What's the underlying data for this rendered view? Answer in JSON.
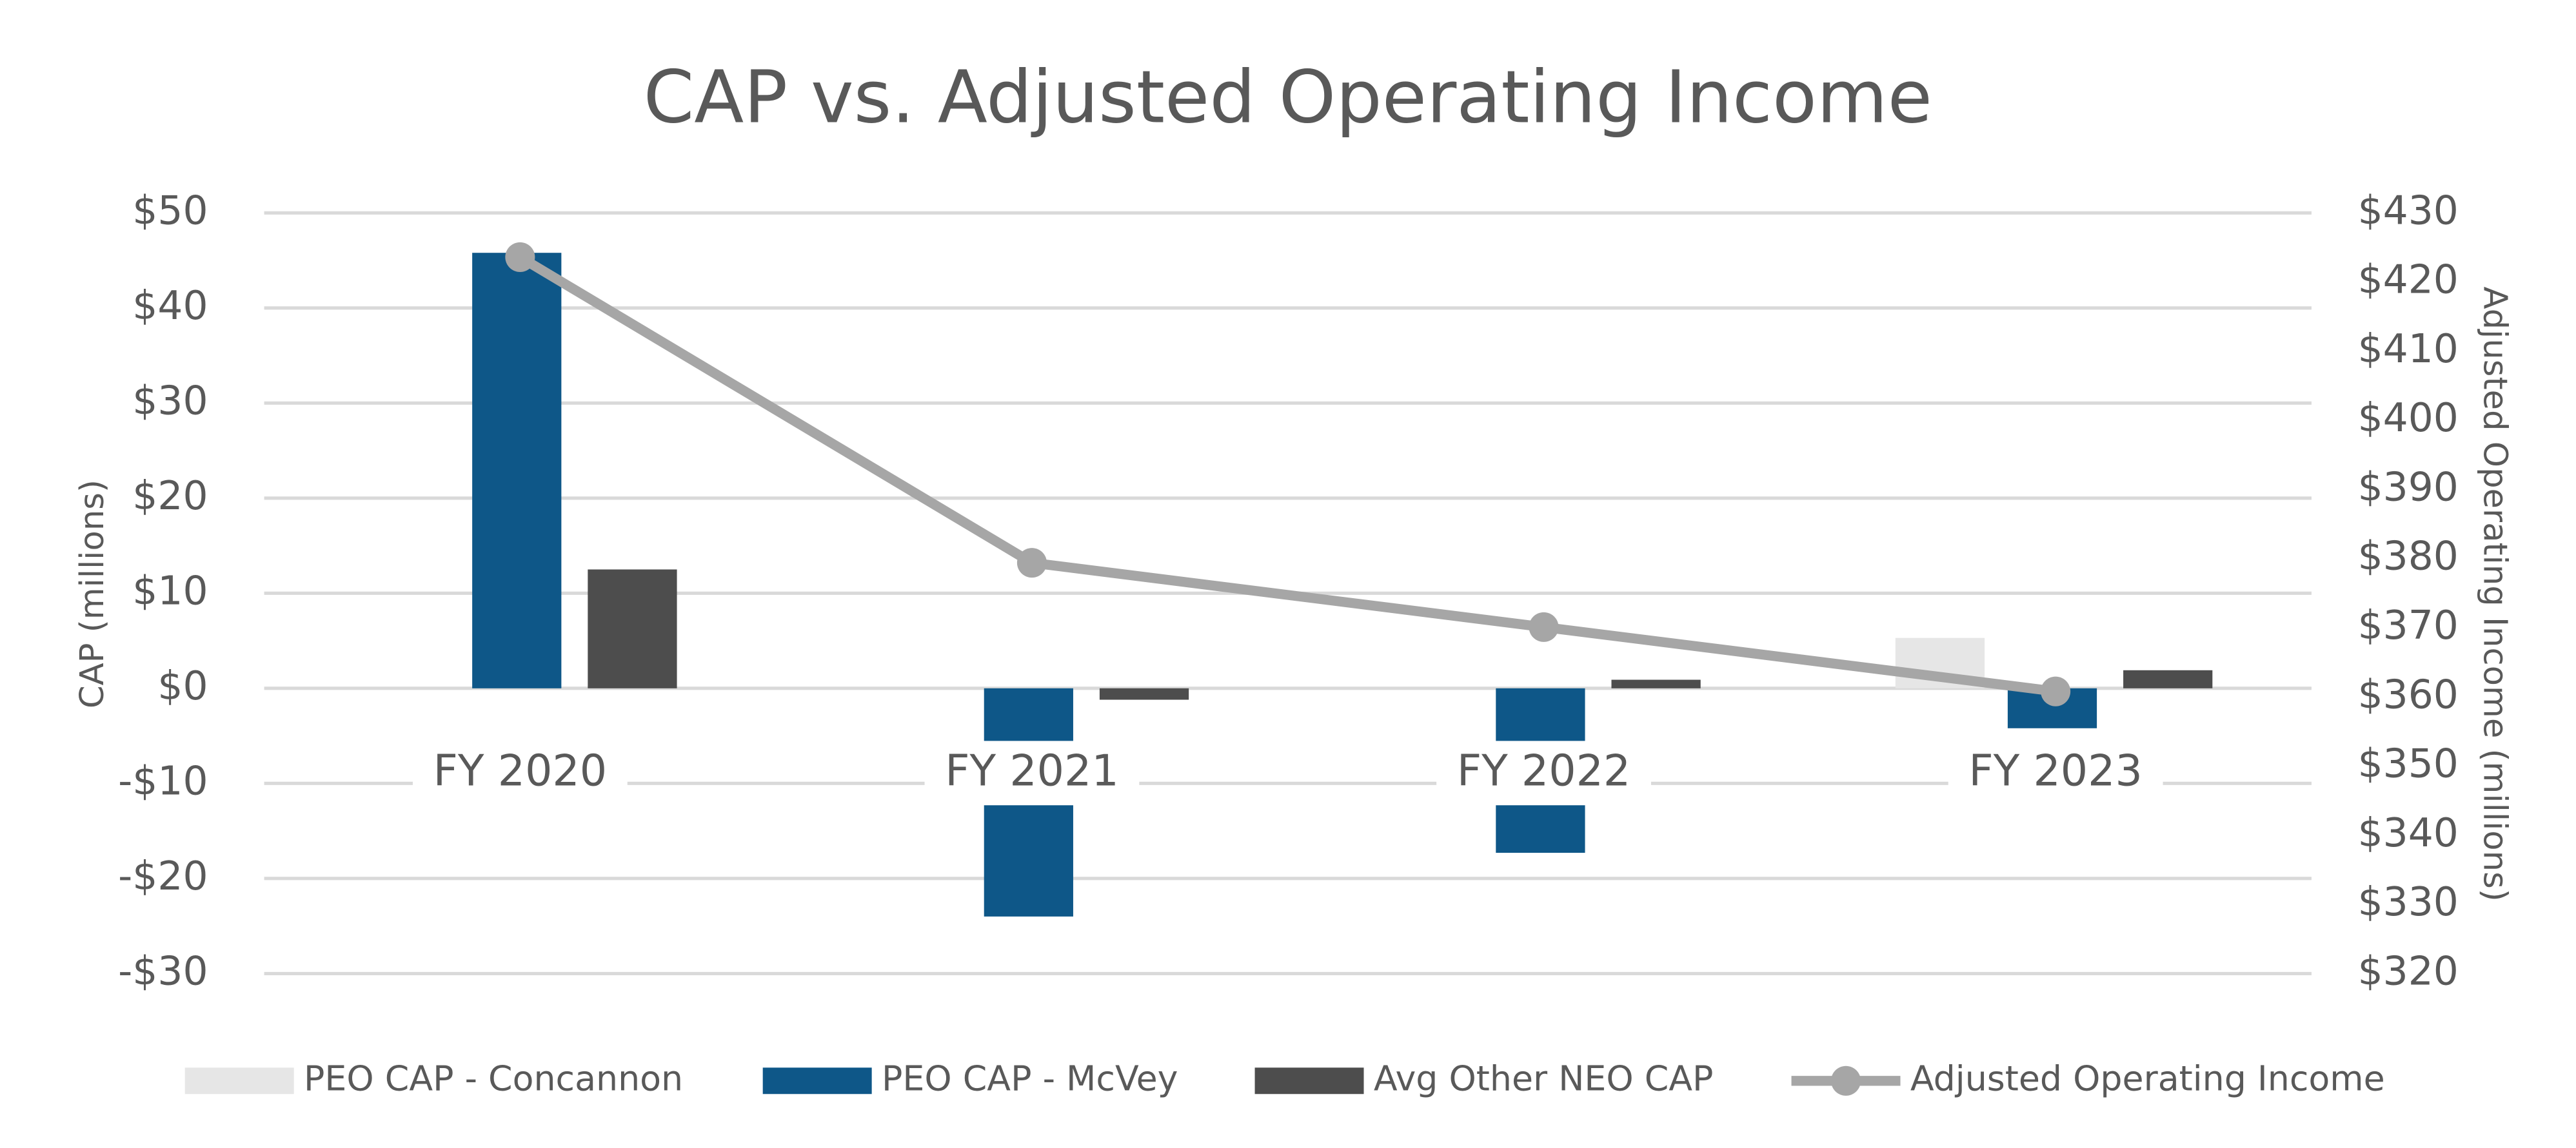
{
  "chart_data": {
    "type": "bar_line",
    "title": "CAP vs. Adjusted Operating Income",
    "y_label": "CAP (millions)",
    "y2_label": "Adjusted Operating Income (millions)",
    "categories": [
      "FY 2020",
      "FY 2021",
      "FY 2022",
      "FY 2023"
    ],
    "series": [
      {
        "name": "PEO CAP - Concannon",
        "color": "#e6e6e6",
        "type": "bar",
        "values": [
          null,
          null,
          null,
          5.3
        ]
      },
      {
        "name": "PEO CAP - McVey",
        "color": "#0e5788",
        "type": "bar",
        "values": [
          45.8,
          -24.0,
          -17.3,
          -4.2
        ]
      },
      {
        "name": "Avg Other NEO CAP",
        "color": "#4d4d4d",
        "type": "bar",
        "values": [
          12.5,
          -1.2,
          0.9,
          1.9
        ]
      },
      {
        "name": "Adjusted Operating Income",
        "color": "#a6a6a6",
        "type": "line",
        "axis": "y2",
        "values": [
          423.6,
          379.4,
          370.1,
          360.8
        ]
      }
    ],
    "ylim": [
      -30,
      50
    ],
    "yticks": [
      {
        "value": -30,
        "label": "-$30"
      },
      {
        "value": -20,
        "label": "-$20"
      },
      {
        "value": -10,
        "label": "-$10"
      },
      {
        "value": 0,
        "label": "$0"
      },
      {
        "value": 10,
        "label": "$10"
      },
      {
        "value": 20,
        "label": "$20"
      },
      {
        "value": 30,
        "label": "$30"
      },
      {
        "value": 40,
        "label": "$40"
      },
      {
        "value": 50,
        "label": "$50"
      }
    ],
    "y2lim": [
      320,
      430
    ],
    "y2ticks": [
      {
        "value": 320,
        "label": "$320"
      },
      {
        "value": 330,
        "label": "$330"
      },
      {
        "value": 340,
        "label": "$340"
      },
      {
        "value": 350,
        "label": "$350"
      },
      {
        "value": 360,
        "label": "$360"
      },
      {
        "value": 370,
        "label": "$370"
      },
      {
        "value": 380,
        "label": "$380"
      },
      {
        "value": 390,
        "label": "$390"
      },
      {
        "value": 400,
        "label": "$400"
      },
      {
        "value": 410,
        "label": "$410"
      },
      {
        "value": 420,
        "label": "$420"
      },
      {
        "value": 430,
        "label": "$430"
      }
    ],
    "grid": true,
    "legend": "bottom"
  }
}
